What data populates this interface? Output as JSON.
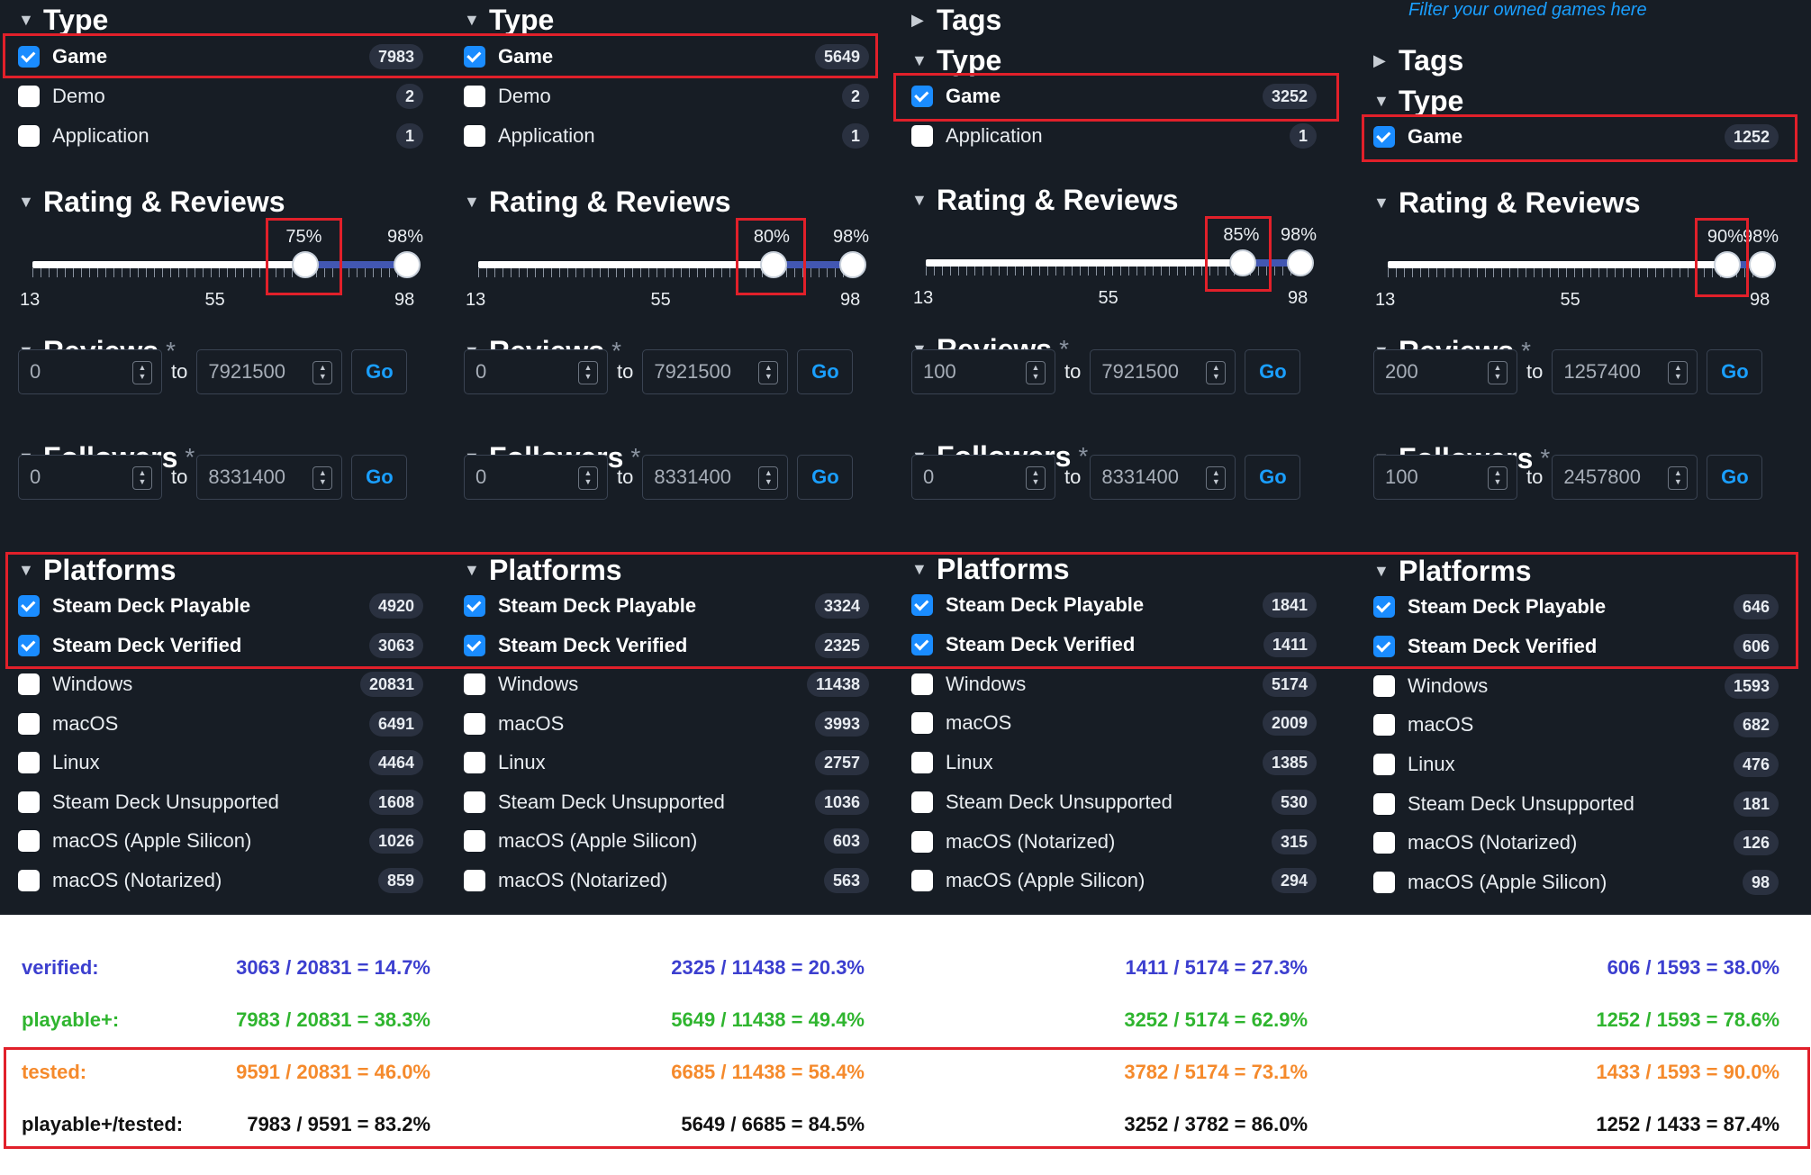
{
  "hint_text": "Filter your owned games here",
  "columns": [
    {
      "show_tags": false,
      "tags_header": "",
      "type_header": "Type",
      "type_items": [
        {
          "label": "Game",
          "count": "7983",
          "checked": true
        },
        {
          "label": "Demo",
          "count": "2",
          "checked": false
        },
        {
          "label": "Application",
          "count": "1",
          "checked": false
        }
      ],
      "rating_header": "Rating & Reviews",
      "rating_min": "75%",
      "rating_max": "98%",
      "rating_min_value": 75,
      "rating_max_value": 98,
      "scale_low": "13",
      "scale_mid": "55",
      "scale_high": "98",
      "reviews_header": "Reviews",
      "reviews_from": "0",
      "reviews_to": "7921500",
      "followers_header": "Followers",
      "followers_from": "0",
      "followers_to": "8331400",
      "to_label": "to",
      "go_label": "Go",
      "platforms_header": "Platforms",
      "platform_items": [
        {
          "label": "Steam Deck Playable",
          "count": "4920",
          "checked": true
        },
        {
          "label": "Steam Deck Verified",
          "count": "3063",
          "checked": true
        },
        {
          "label": "Windows",
          "count": "20831",
          "checked": false
        },
        {
          "label": "macOS",
          "count": "6491",
          "checked": false
        },
        {
          "label": "Linux",
          "count": "4464",
          "checked": false
        },
        {
          "label": "Steam Deck Unsupported",
          "count": "1608",
          "checked": false
        },
        {
          "label": "macOS (Apple Silicon)",
          "count": "1026",
          "checked": false
        },
        {
          "label": "macOS (Notarized)",
          "count": "859",
          "checked": false
        }
      ]
    },
    {
      "show_tags": false,
      "tags_header": "",
      "type_header": "Type",
      "type_items": [
        {
          "label": "Game",
          "count": "5649",
          "checked": true
        },
        {
          "label": "Demo",
          "count": "2",
          "checked": false
        },
        {
          "label": "Application",
          "count": "1",
          "checked": false
        }
      ],
      "rating_header": "Rating & Reviews",
      "rating_min": "80%",
      "rating_max": "98%",
      "rating_min_value": 80,
      "rating_max_value": 98,
      "scale_low": "13",
      "scale_mid": "55",
      "scale_high": "98",
      "reviews_header": "Reviews",
      "reviews_from": "0",
      "reviews_to": "7921500",
      "followers_header": "Followers",
      "followers_from": "0",
      "followers_to": "8331400",
      "to_label": "to",
      "go_label": "Go",
      "platforms_header": "Platforms",
      "platform_items": [
        {
          "label": "Steam Deck Playable",
          "count": "3324",
          "checked": true
        },
        {
          "label": "Steam Deck Verified",
          "count": "2325",
          "checked": true
        },
        {
          "label": "Windows",
          "count": "11438",
          "checked": false
        },
        {
          "label": "macOS",
          "count": "3993",
          "checked": false
        },
        {
          "label": "Linux",
          "count": "2757",
          "checked": false
        },
        {
          "label": "Steam Deck Unsupported",
          "count": "1036",
          "checked": false
        },
        {
          "label": "macOS (Apple Silicon)",
          "count": "603",
          "checked": false
        },
        {
          "label": "macOS (Notarized)",
          "count": "563",
          "checked": false
        }
      ]
    },
    {
      "show_tags": true,
      "tags_header": "Tags",
      "type_header": "Type",
      "type_items": [
        {
          "label": "Game",
          "count": "3252",
          "checked": true
        },
        {
          "label": "Application",
          "count": "1",
          "checked": false
        }
      ],
      "rating_header": "Rating & Reviews",
      "rating_min": "85%",
      "rating_max": "98%",
      "rating_min_value": 85,
      "rating_max_value": 98,
      "scale_low": "13",
      "scale_mid": "55",
      "scale_high": "98",
      "reviews_header": "Reviews",
      "reviews_from": "100",
      "reviews_to": "7921500",
      "followers_header": "Followers",
      "followers_from": "0",
      "followers_to": "8331400",
      "to_label": "to",
      "go_label": "Go",
      "platforms_header": "Platforms",
      "platform_items": [
        {
          "label": "Steam Deck Playable",
          "count": "1841",
          "checked": true
        },
        {
          "label": "Steam Deck Verified",
          "count": "1411",
          "checked": true
        },
        {
          "label": "Windows",
          "count": "5174",
          "checked": false
        },
        {
          "label": "macOS",
          "count": "2009",
          "checked": false
        },
        {
          "label": "Linux",
          "count": "1385",
          "checked": false
        },
        {
          "label": "Steam Deck Unsupported",
          "count": "530",
          "checked": false
        },
        {
          "label": "macOS (Notarized)",
          "count": "315",
          "checked": false
        },
        {
          "label": "macOS (Apple Silicon)",
          "count": "294",
          "checked": false
        }
      ]
    },
    {
      "show_tags": true,
      "tags_header": "Tags",
      "type_header": "Type",
      "type_items": [
        {
          "label": "Game",
          "count": "1252",
          "checked": true
        }
      ],
      "rating_header": "Rating & Reviews",
      "rating_min": "90%",
      "rating_max": "98%",
      "rating_min_value": 90,
      "rating_max_value": 98,
      "scale_low": "13",
      "scale_mid": "55",
      "scale_high": "98",
      "reviews_header": "Reviews",
      "reviews_from": "200",
      "reviews_to": "1257400",
      "followers_header": "Followers",
      "followers_from": "100",
      "followers_to": "2457800",
      "to_label": "to",
      "go_label": "Go",
      "platforms_header": "Platforms",
      "platform_items": [
        {
          "label": "Steam Deck Playable",
          "count": "646",
          "checked": true
        },
        {
          "label": "Steam Deck Verified",
          "count": "606",
          "checked": true
        },
        {
          "label": "Windows",
          "count": "1593",
          "checked": false
        },
        {
          "label": "macOS",
          "count": "682",
          "checked": false
        },
        {
          "label": "Linux",
          "count": "476",
          "checked": false
        },
        {
          "label": "Steam Deck Unsupported",
          "count": "181",
          "checked": false
        },
        {
          "label": "macOS (Notarized)",
          "count": "126",
          "checked": false
        },
        {
          "label": "macOS (Apple Silicon)",
          "count": "98",
          "checked": false
        }
      ]
    }
  ],
  "stats": [
    {
      "label": "verified:",
      "color": "#3c3fcf",
      "values": [
        "3063 / 20831 = 14.7%",
        "2325 / 11438 = 20.3%",
        "1411 / 5174 = 27.3%",
        "606 / 1593 = 38.0%"
      ]
    },
    {
      "label": "playable+:",
      "color": "#2fb52f",
      "values": [
        "7983 / 20831 = 38.3%",
        "5649 / 11438 = 49.4%",
        "3252 / 5174 = 62.9%",
        "1252 / 1593 = 78.6%"
      ]
    },
    {
      "label": "tested:",
      "color": "#f58a2c",
      "values": [
        "9591 / 20831 = 46.0%",
        "6685 / 11438 = 58.4%",
        "3782 / 5174 = 73.1%",
        "1433 / 1593 = 90.0%"
      ]
    },
    {
      "label": "playable+/tested:",
      "color": "#111111",
      "values": [
        "7983 / 9591 = 83.2%",
        "5649 / 6685 = 84.5%",
        "3252 / 3782 = 86.0%",
        "1252 / 1433 = 87.4%"
      ]
    }
  ]
}
